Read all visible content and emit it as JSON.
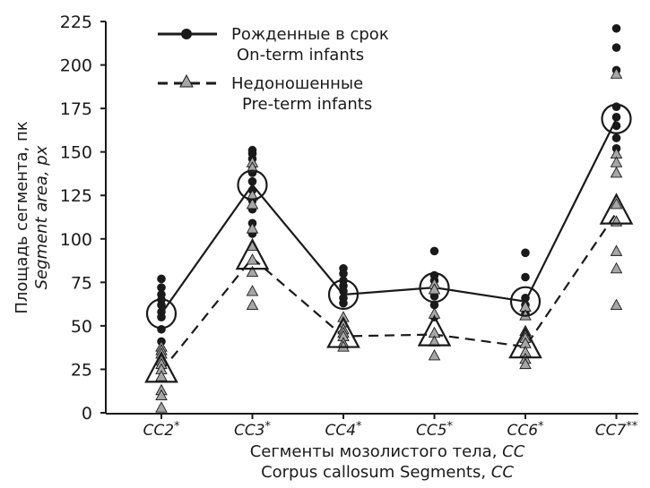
{
  "chart_data": {
    "type": "line",
    "ylabel_ru": "Площадь сегмента, пк",
    "ylabel_en": "Segment area, px",
    "xlabel_ru": "Сегменты мозолистого тела, ",
    "xlabel_ru_cc": "CC",
    "xlabel_en": "Corpus callosum Segments, ",
    "xlabel_en_cc": "CC",
    "ylim": [
      0,
      225
    ],
    "yticks": [
      "0",
      "25",
      "50",
      "75",
      "100",
      "125",
      "150",
      "175",
      "200",
      "225"
    ],
    "categories": [
      {
        "name": "CC2",
        "mark": "*"
      },
      {
        "name": "CC3",
        "mark": "*"
      },
      {
        "name": "CC4",
        "mark": "*"
      },
      {
        "name": "CC5",
        "mark": "*"
      },
      {
        "name": "CC6",
        "mark": "*"
      },
      {
        "name": "CC7",
        "mark": "**"
      }
    ],
    "legend": {
      "on_term_ru": "Рожденные в срок",
      "on_term_en": "On-term infants",
      "pre_term_ru": "Недоношенные",
      "pre_term_en": "Pre-term infants"
    },
    "series": [
      {
        "name": "On-term infants",
        "style": "solid",
        "marker": "circle",
        "means": [
          57,
          131,
          68,
          72,
          64,
          169
        ],
        "points": [
          [
            77,
            72,
            68,
            65,
            62,
            58,
            55,
            48,
            41
          ],
          [
            151,
            149,
            146,
            142,
            138,
            133,
            128,
            122,
            117,
            109,
            103
          ],
          [
            83,
            80,
            76,
            73,
            70,
            66,
            63
          ],
          [
            93,
            79,
            76,
            72,
            67,
            62,
            55
          ],
          [
            92,
            78,
            66,
            62,
            57
          ],
          [
            221,
            210,
            197,
            176,
            170,
            165,
            158,
            152
          ]
        ]
      },
      {
        "name": "Pre-term infants",
        "style": "dashed",
        "marker": "triangle",
        "color": "#a6a6a6",
        "means": [
          24,
          89,
          44,
          45,
          38,
          115
        ],
        "points": [
          [
            38,
            36,
            34,
            30,
            28,
            25,
            21,
            13,
            10,
            3
          ],
          [
            144,
            141,
            125,
            120,
            106,
            96,
            88,
            81,
            70,
            62
          ],
          [
            55,
            52,
            48,
            46,
            44,
            40,
            38
          ],
          [
            74,
            71,
            57,
            46,
            41,
            33
          ],
          [
            61,
            56,
            47,
            43,
            40,
            35,
            31,
            28
          ],
          [
            195,
            149,
            144,
            138,
            120,
            110,
            93,
            83,
            62
          ]
        ]
      }
    ]
  }
}
